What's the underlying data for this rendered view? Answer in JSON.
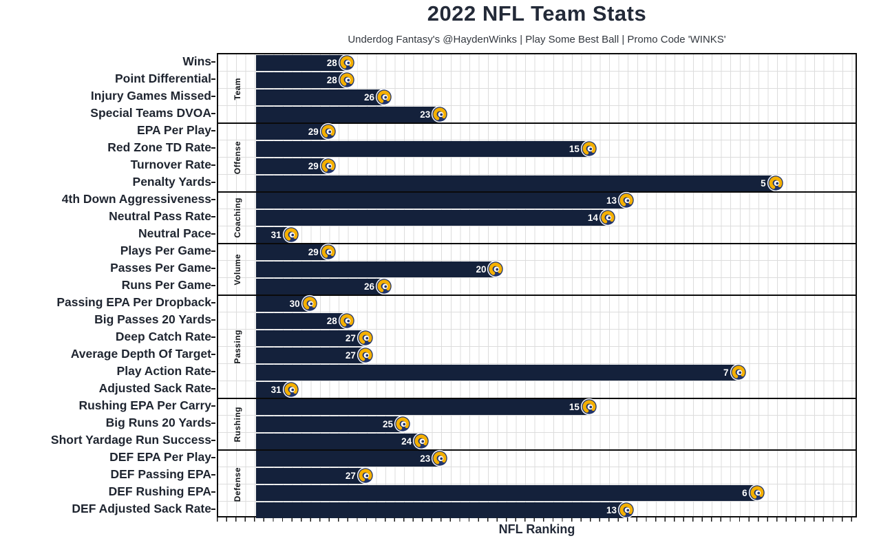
{
  "header": {
    "title": "2022 NFL Team Stats",
    "subtitle": "Underdog Fantasy's @HaydenWinks | Play Some Best Ball | Promo Code 'WINKS'"
  },
  "chart_data": {
    "type": "bar",
    "orientation": "horizontal",
    "title": "2022 NFL Team Stats",
    "subtitle": "Underdog Fantasy's @HaydenWinks | Play Some Best Ball | Promo Code 'WINKS'",
    "xlabel": "NFL Ranking",
    "x_axis": {
      "meaning": "NFL rank per stat (1 = best, 32 = worst)",
      "range_shown": [
        33,
        1
      ],
      "direction": "inverted, better (lower) rank = longer bar",
      "tick_labels": "none (unlabeled minor ticks)",
      "grid": true
    },
    "legend_position": "none",
    "bar_color": "#14213B",
    "value_label_color": "#FFFFFF",
    "end_icon": "rams-helmet-icon",
    "groups": [
      {
        "name": "Team",
        "rows": [
          {
            "label": "Wins",
            "value": 28
          },
          {
            "label": "Point Differential",
            "value": 28
          },
          {
            "label": "Injury Games Missed",
            "value": 26
          },
          {
            "label": "Special Teams DVOA",
            "value": 23
          }
        ]
      },
      {
        "name": "Offense",
        "rows": [
          {
            "label": "EPA Per Play",
            "value": 29
          },
          {
            "label": "Red Zone TD Rate",
            "value": 15
          },
          {
            "label": "Turnover Rate",
            "value": 29
          },
          {
            "label": "Penalty Yards",
            "value": 5
          }
        ]
      },
      {
        "name": "Coaching",
        "rows": [
          {
            "label": "4th Down Aggressiveness",
            "value": 13
          },
          {
            "label": "Neutral Pass Rate",
            "value": 14
          },
          {
            "label": "Neutral Pace",
            "value": 31
          }
        ]
      },
      {
        "name": "Volume",
        "rows": [
          {
            "label": "Plays Per Game",
            "value": 29
          },
          {
            "label": "Passes Per Game",
            "value": 20
          },
          {
            "label": "Runs Per Game",
            "value": 26
          }
        ]
      },
      {
        "name": "Passing",
        "rows": [
          {
            "label": "Passing EPA Per Dropback",
            "value": 30
          },
          {
            "label": "Big Passes 20 Yards",
            "value": 28
          },
          {
            "label": "Deep Catch Rate",
            "value": 27
          },
          {
            "label": "Average Depth Of Target",
            "value": 27
          },
          {
            "label": "Play Action Rate",
            "value": 7
          },
          {
            "label": "Adjusted Sack Rate",
            "value": 31
          }
        ]
      },
      {
        "name": "Rushing",
        "rows": [
          {
            "label": "Rushing EPA Per Carry",
            "value": 15
          },
          {
            "label": "Big Runs 20 Yards",
            "value": 25
          },
          {
            "label": "Short Yardage Run Success",
            "value": 24
          }
        ]
      },
      {
        "name": "Defense",
        "rows": [
          {
            "label": "DEF EPA Per Play",
            "value": 23
          },
          {
            "label": "DEF Passing EPA",
            "value": 27
          },
          {
            "label": "DEF Rushing EPA",
            "value": 6
          },
          {
            "label": "DEF Adjusted Sack Rate",
            "value": 13
          }
        ]
      }
    ],
    "colors": {
      "bar_navy": "#14213B",
      "helmet_gold": "#F5B000",
      "helmet_navy": "#22356B",
      "grid_gray": "#DCDCDC",
      "text_dark": "#232A38"
    }
  }
}
